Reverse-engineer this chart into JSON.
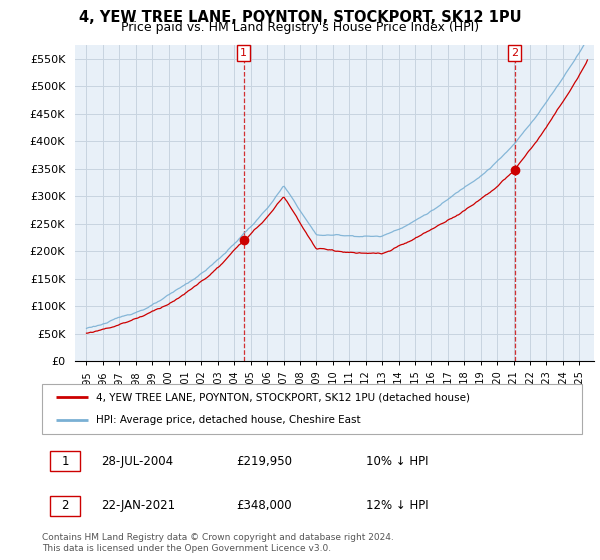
{
  "title": "4, YEW TREE LANE, POYNTON, STOCKPORT, SK12 1PU",
  "subtitle": "Price paid vs. HM Land Registry's House Price Index (HPI)",
  "ylim": [
    0,
    575000
  ],
  "yticks": [
    0,
    50000,
    100000,
    150000,
    200000,
    250000,
    300000,
    350000,
    400000,
    450000,
    500000,
    550000
  ],
  "ytick_labels": [
    "£0",
    "£50K",
    "£100K",
    "£150K",
    "£200K",
    "£250K",
    "£300K",
    "£350K",
    "£400K",
    "£450K",
    "£500K",
    "£550K"
  ],
  "sale1_date": 2004.57,
  "sale1_price": 219950,
  "sale2_date": 2021.06,
  "sale2_price": 348000,
  "legend_line1": "4, YEW TREE LANE, POYNTON, STOCKPORT, SK12 1PU (detached house)",
  "legend_line2": "HPI: Average price, detached house, Cheshire East",
  "ann1_date": "28-JUL-2004",
  "ann1_price": "£219,950",
  "ann1_note": "10% ↓ HPI",
  "ann2_date": "22-JAN-2021",
  "ann2_price": "£348,000",
  "ann2_note": "12% ↓ HPI",
  "footer": "Contains HM Land Registry data © Crown copyright and database right 2024.\nThis data is licensed under the Open Government Licence v3.0.",
  "red_color": "#cc0000",
  "blue_color": "#7ab0d4",
  "chart_bg": "#e8f0f8",
  "grid_color": "#c8d4e0"
}
